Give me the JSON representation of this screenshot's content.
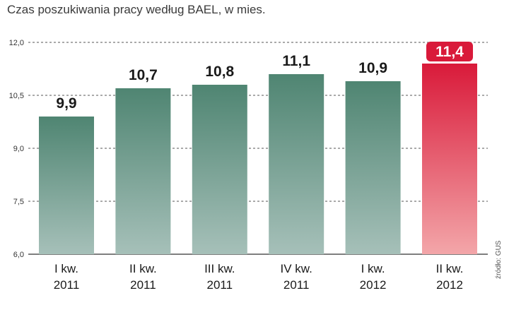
{
  "header": {
    "title": "Czas poszukiwania pracy według BAEL, w mies."
  },
  "footer": {
    "source": "źródło: GUS"
  },
  "colors": {
    "bar_top": "#4f8572",
    "bar_bottom": "#a6c0b9",
    "highlight_top": "#d91a3a",
    "highlight_bottom": "#f3a6a9",
    "grid": "#555555"
  },
  "chart_data": {
    "type": "bar",
    "title": "Czas poszukiwania pracy według BAEL, w mies.",
    "categories": [
      [
        "I kw.",
        "2011"
      ],
      [
        "II kw.",
        "2011"
      ],
      [
        "III kw.",
        "2011"
      ],
      [
        "IV kw.",
        "2011"
      ],
      [
        "I kw.",
        "2012"
      ],
      [
        "II kw.",
        "2012"
      ]
    ],
    "values": [
      9.9,
      10.7,
      10.8,
      11.1,
      10.9,
      11.4
    ],
    "value_labels": [
      "9,9",
      "10,7",
      "10,8",
      "11,1",
      "10,9",
      "11,4"
    ],
    "highlight_index": 5,
    "ylim": [
      6.0,
      12.0
    ],
    "yticks": [
      6.0,
      7.5,
      9.0,
      10.5,
      12.0
    ],
    "ytick_labels": [
      "6,0",
      "7,5",
      "9,0",
      "10,5",
      "12,0"
    ],
    "grid": true,
    "xlabel": "",
    "ylabel": ""
  }
}
